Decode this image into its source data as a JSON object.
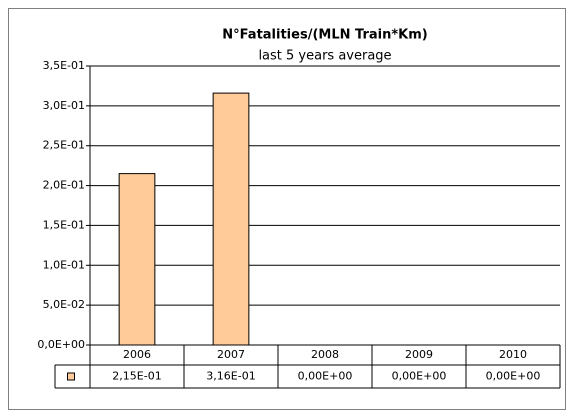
{
  "chart_data": {
    "type": "bar",
    "title": "N°Fatalities/(MLN Train*Km)",
    "subtitle": "last 5 years average",
    "categories": [
      "2006",
      "2007",
      "2008",
      "2009",
      "2010"
    ],
    "values": [
      0.215,
      0.316,
      0,
      0,
      0
    ],
    "value_labels": [
      "2,15E-01",
      "3,16E-01",
      "0,00E+00",
      "0,00E+00",
      "0,00E+00"
    ],
    "color": "#ffcc99",
    "ylim": [
      0,
      0.35
    ],
    "yticks": [
      {
        "value": 0,
        "label": "0,0E+00"
      },
      {
        "value": 0.05,
        "label": "5,0E-02"
      },
      {
        "value": 0.1,
        "label": "1,0E-01"
      },
      {
        "value": 0.15,
        "label": "1,5E-01"
      },
      {
        "value": 0.2,
        "label": "2,0E-01"
      },
      {
        "value": 0.25,
        "label": "2,5E-01"
      },
      {
        "value": 0.3,
        "label": "3,0E-01"
      },
      {
        "value": 0.35,
        "label": "3,5E-01"
      }
    ],
    "grid": true
  }
}
